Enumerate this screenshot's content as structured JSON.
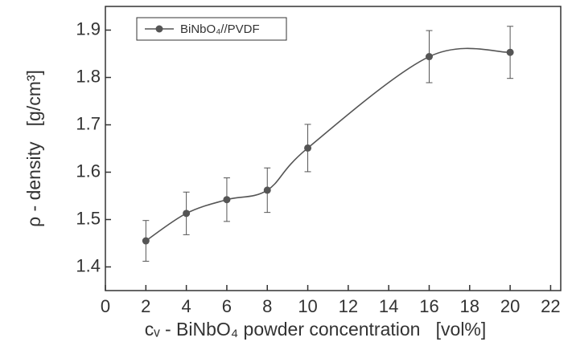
{
  "chart_data": {
    "type": "line",
    "xlabel": "cᵥ - BiNbO₄ powder concentration   [vol%]",
    "ylabel": "ρ - density   [g/cm³]",
    "series": [
      {
        "name": "BiNbO₄//PVDF",
        "color": "#555555",
        "x": [
          2,
          4,
          6,
          8,
          10,
          16,
          20
        ],
        "values": [
          1.455,
          1.513,
          1.542,
          1.562,
          1.651,
          1.844,
          1.853
        ],
        "errors": [
          0.043,
          0.045,
          0.046,
          0.047,
          0.05,
          0.055,
          0.055
        ]
      }
    ],
    "xlim": [
      0,
      22.5
    ],
    "xticks": [
      0,
      2,
      4,
      6,
      8,
      10,
      12,
      14,
      16,
      18,
      20,
      22
    ],
    "ylim": [
      1.35,
      1.95
    ],
    "yticks": [
      1.4,
      1.5,
      1.6,
      1.7,
      1.8,
      1.9
    ],
    "legend": "top-left",
    "grid": false
  }
}
